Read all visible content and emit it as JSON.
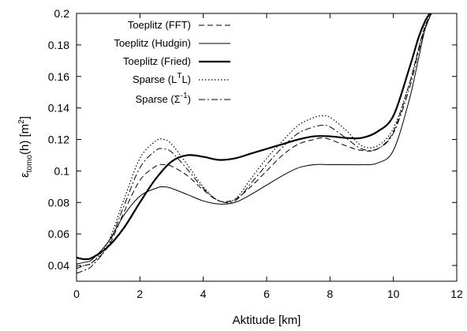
{
  "chart_data": {
    "type": "line",
    "title": "",
    "xlabel": "Aktitude [km]",
    "ylabel": {
      "base": "ε",
      "sub": "tomo",
      "middle": "(h) [m",
      "sup": "2",
      "end": "]"
    },
    "xlim": [
      0,
      12
    ],
    "ylim": [
      0.03,
      0.2
    ],
    "x_ticks": [
      "0",
      "2",
      "4",
      "6",
      "8",
      "10",
      "12"
    ],
    "x_tick_values": [
      0,
      2,
      4,
      6,
      8,
      10,
      12
    ],
    "y_ticks": [
      "0.04",
      "0.06",
      "0.08",
      "0.1",
      "0.12",
      "0.14",
      "0.16",
      "0.18",
      "0.2"
    ],
    "y_tick_values": [
      0.04,
      0.06,
      0.08,
      0.1,
      0.12,
      0.14,
      0.16,
      0.18,
      0.2
    ],
    "grid": false,
    "legend_position": "top-left",
    "series": [
      {
        "name": "Toeplitz (FFT)",
        "legend": {
          "text": "Toeplitz (FFT)"
        },
        "style": "dashed",
        "x": [
          0,
          0.25,
          0.5,
          1,
          1.5,
          2,
          2.5,
          2.75,
          3,
          3.5,
          4,
          4.5,
          5,
          5.5,
          6,
          6.5,
          7,
          7.5,
          7.75,
          8,
          8.5,
          9,
          9.5,
          10,
          10.5,
          10.8,
          11,
          11.2
        ],
        "y": [
          0.038,
          0.04,
          0.042,
          0.052,
          0.074,
          0.094,
          0.103,
          0.104,
          0.103,
          0.097,
          0.088,
          0.081,
          0.082,
          0.09,
          0.1,
          0.11,
          0.117,
          0.12,
          0.121,
          0.12,
          0.116,
          0.113,
          0.114,
          0.125,
          0.155,
          0.178,
          0.192,
          0.2
        ]
      },
      {
        "name": "Toeplitz (Hudgin)",
        "legend": {
          "text": "Toeplitz (Hudgin)"
        },
        "style": "thin",
        "x": [
          0,
          0.25,
          0.5,
          1,
          1.5,
          2,
          2.5,
          2.75,
          3,
          3.5,
          4,
          4.5,
          5,
          5.5,
          6,
          6.5,
          7,
          7.5,
          8,
          8.5,
          9,
          9.5,
          10,
          10.5,
          10.8,
          11,
          11.2
        ],
        "y": [
          0.041,
          0.042,
          0.044,
          0.055,
          0.072,
          0.084,
          0.089,
          0.09,
          0.089,
          0.085,
          0.081,
          0.079,
          0.08,
          0.085,
          0.091,
          0.097,
          0.102,
          0.104,
          0.104,
          0.104,
          0.104,
          0.105,
          0.113,
          0.145,
          0.172,
          0.19,
          0.2
        ]
      },
      {
        "name": "Toeplitz (Fried)",
        "legend": {
          "text": "Toeplitz (Fried)"
        },
        "style": "thick",
        "x": [
          0,
          0.25,
          0.5,
          1,
          1.5,
          2,
          2.5,
          3,
          3.5,
          4,
          4.5,
          5,
          5.5,
          6,
          6.5,
          7,
          7.5,
          8,
          8.5,
          9,
          9.5,
          10,
          10.5,
          10.8,
          11,
          11.15
        ],
        "y": [
          0.045,
          0.044,
          0.045,
          0.052,
          0.064,
          0.08,
          0.095,
          0.106,
          0.11,
          0.109,
          0.107,
          0.108,
          0.111,
          0.114,
          0.117,
          0.12,
          0.122,
          0.122,
          0.121,
          0.121,
          0.125,
          0.135,
          0.165,
          0.185,
          0.195,
          0.2
        ]
      },
      {
        "name": "Sparse (LTL)",
        "legend": {
          "text": "Sparse (L",
          "sup": "T",
          "end": "L)"
        },
        "style": "dotted",
        "x": [
          0,
          0.25,
          0.5,
          1,
          1.5,
          2,
          2.5,
          2.75,
          3,
          3.5,
          4,
          4.5,
          5,
          5.5,
          6,
          6.5,
          7,
          7.5,
          7.75,
          8,
          8.5,
          9,
          9.5,
          10,
          10.5,
          10.8,
          11,
          11.2
        ],
        "y": [
          0.039,
          0.04,
          0.042,
          0.055,
          0.082,
          0.108,
          0.119,
          0.12,
          0.117,
          0.104,
          0.09,
          0.081,
          0.082,
          0.095,
          0.108,
          0.119,
          0.129,
          0.134,
          0.135,
          0.134,
          0.126,
          0.116,
          0.116,
          0.127,
          0.155,
          0.178,
          0.192,
          0.2
        ]
      },
      {
        "name": "Sparse (Σ-1)",
        "legend": {
          "text": "Sparse (Σ",
          "sup": "-1",
          "end": ")"
        },
        "style": "dashdot",
        "x": [
          0,
          0.25,
          0.5,
          1,
          1.5,
          2,
          2.5,
          2.75,
          3,
          3.5,
          4,
          4.5,
          5,
          5.5,
          6,
          6.5,
          7,
          7.5,
          7.75,
          8,
          8.5,
          9,
          9.5,
          10,
          10.5,
          10.8,
          11,
          11.2
        ],
        "y": [
          0.035,
          0.037,
          0.04,
          0.053,
          0.078,
          0.102,
          0.113,
          0.114,
          0.112,
          0.101,
          0.089,
          0.081,
          0.081,
          0.092,
          0.104,
          0.115,
          0.124,
          0.128,
          0.129,
          0.128,
          0.121,
          0.114,
          0.114,
          0.124,
          0.152,
          0.176,
          0.19,
          0.2
        ]
      }
    ]
  }
}
